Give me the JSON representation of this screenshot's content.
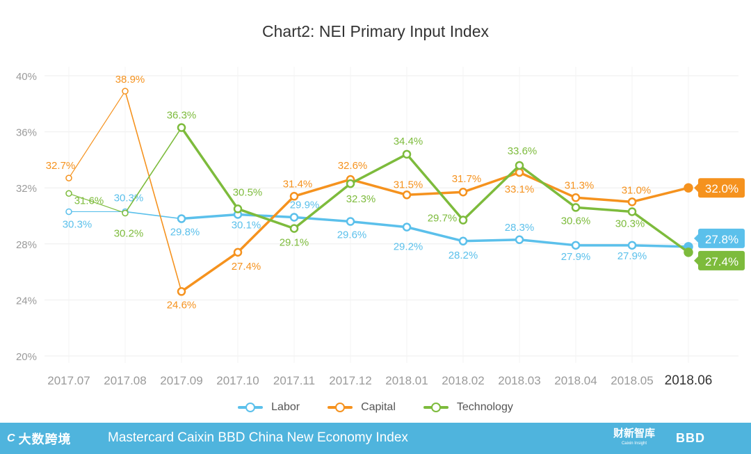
{
  "chart_data": {
    "type": "line",
    "title": "Chart2: NEI Primary Input Index",
    "categories": [
      "2017.07",
      "2017.08",
      "2017.09",
      "2017.10",
      "2017.11",
      "2017.12",
      "2018.01",
      "2018.02",
      "2018.03",
      "2018.04",
      "2018.05",
      "2018.06"
    ],
    "y_ticks": [
      "40%",
      "36%",
      "32%",
      "28%",
      "24%",
      "20%"
    ],
    "ylim": [
      20,
      40
    ],
    "grid": true,
    "legend_placement": "bottom-center",
    "series": [
      {
        "name": "Labor",
        "color": "#5bc0eb",
        "values": [
          30.3,
          30.3,
          29.8,
          30.1,
          29.9,
          29.6,
          29.2,
          28.2,
          28.3,
          27.9,
          27.9,
          27.8
        ],
        "labels": [
          "30.3%",
          "30.3%",
          "29.8%",
          "30.1%",
          "29.9%",
          "29.6%",
          "29.2%",
          "28.2%",
          "28.3%",
          "27.9%",
          "27.9%",
          "27.8%"
        ]
      },
      {
        "name": "Capital",
        "color": "#f5921e",
        "values": [
          32.7,
          38.9,
          24.6,
          27.4,
          31.4,
          32.6,
          31.5,
          31.7,
          33.1,
          31.3,
          31.0,
          32.0
        ],
        "labels": [
          "32.7%",
          "38.9%",
          "24.6%",
          "27.4%",
          "31.4%",
          "32.6%",
          "31.5%",
          "31.7%",
          "33.1%",
          "31.3%",
          "31.0%",
          "32.0%"
        ]
      },
      {
        "name": "Technology",
        "color": "#7dbb3c",
        "values": [
          31.6,
          30.2,
          36.3,
          30.5,
          29.1,
          32.3,
          34.4,
          29.7,
          33.6,
          30.6,
          30.3,
          27.4
        ],
        "labels": [
          "31.6%",
          "30.2%",
          "36.3%",
          "30.5%",
          "29.1%",
          "32.3%",
          "34.4%",
          "29.7%",
          "33.6%",
          "30.6%",
          "30.3%",
          "27.4%"
        ]
      }
    ]
  },
  "footer": {
    "left_logo": "大数跨境",
    "left_mark": "C",
    "text": "Mastercard Caixin BBD China New Economy Index",
    "right_logo": "财新智库",
    "right_logo_sub": "Caixin Insight",
    "bbd_logo": "BBD"
  }
}
